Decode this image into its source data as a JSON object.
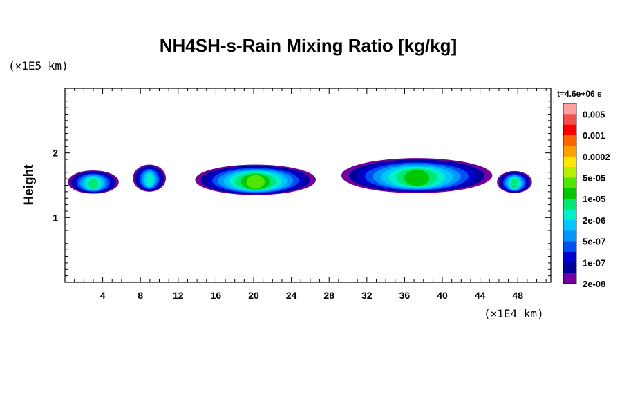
{
  "chart_data": {
    "type": "heatmap",
    "title": "NH4SH-s-Rain Mixing Ratio [kg/kg]",
    "xlabel": "",
    "ylabel": "Height",
    "x_unit_label": "(×1E4 km)",
    "y_unit_label": "(×1E5 km)",
    "xlim": [
      0,
      51.5
    ],
    "ylim": [
      0,
      3
    ],
    "x_ticks": [
      4,
      8,
      12,
      16,
      20,
      24,
      28,
      32,
      36,
      40,
      44,
      48
    ],
    "y_ticks": [
      1,
      2
    ],
    "time_label": "t=4.6e+06 s",
    "colorbar": {
      "labels": [
        "0.005",
        "0.001",
        "0.0002",
        "5e-05",
        "1e-05",
        "2e-06",
        "5e-07",
        "1e-07",
        "2e-08"
      ],
      "colors": [
        "#ffa0a0",
        "#f05050",
        "#ff0000",
        "#ff6400",
        "#ffa000",
        "#ffe600",
        "#b4f000",
        "#50e600",
        "#00c800",
        "#00e678",
        "#00f0c8",
        "#00c8ff",
        "#0096ff",
        "#0050f0",
        "#0000d0",
        "#00009a",
        "#7000a0"
      ]
    },
    "regions": [
      {
        "x": [
          0.3,
          5.7
        ],
        "y": [
          1.37,
          1.73
        ],
        "peak_level": 9
      },
      {
        "x": [
          7.2,
          10.7
        ],
        "y": [
          1.4,
          1.82
        ],
        "peak_level": 10
      },
      {
        "x": [
          13.8,
          26.6
        ],
        "y": [
          1.35,
          1.82
        ],
        "peak_level": 7
      },
      {
        "x": [
          29.3,
          45.3
        ],
        "y": [
          1.38,
          1.92
        ],
        "peak_level": 8
      },
      {
        "x": [
          45.8,
          49.5
        ],
        "y": [
          1.38,
          1.72
        ],
        "peak_level": 9
      }
    ]
  }
}
